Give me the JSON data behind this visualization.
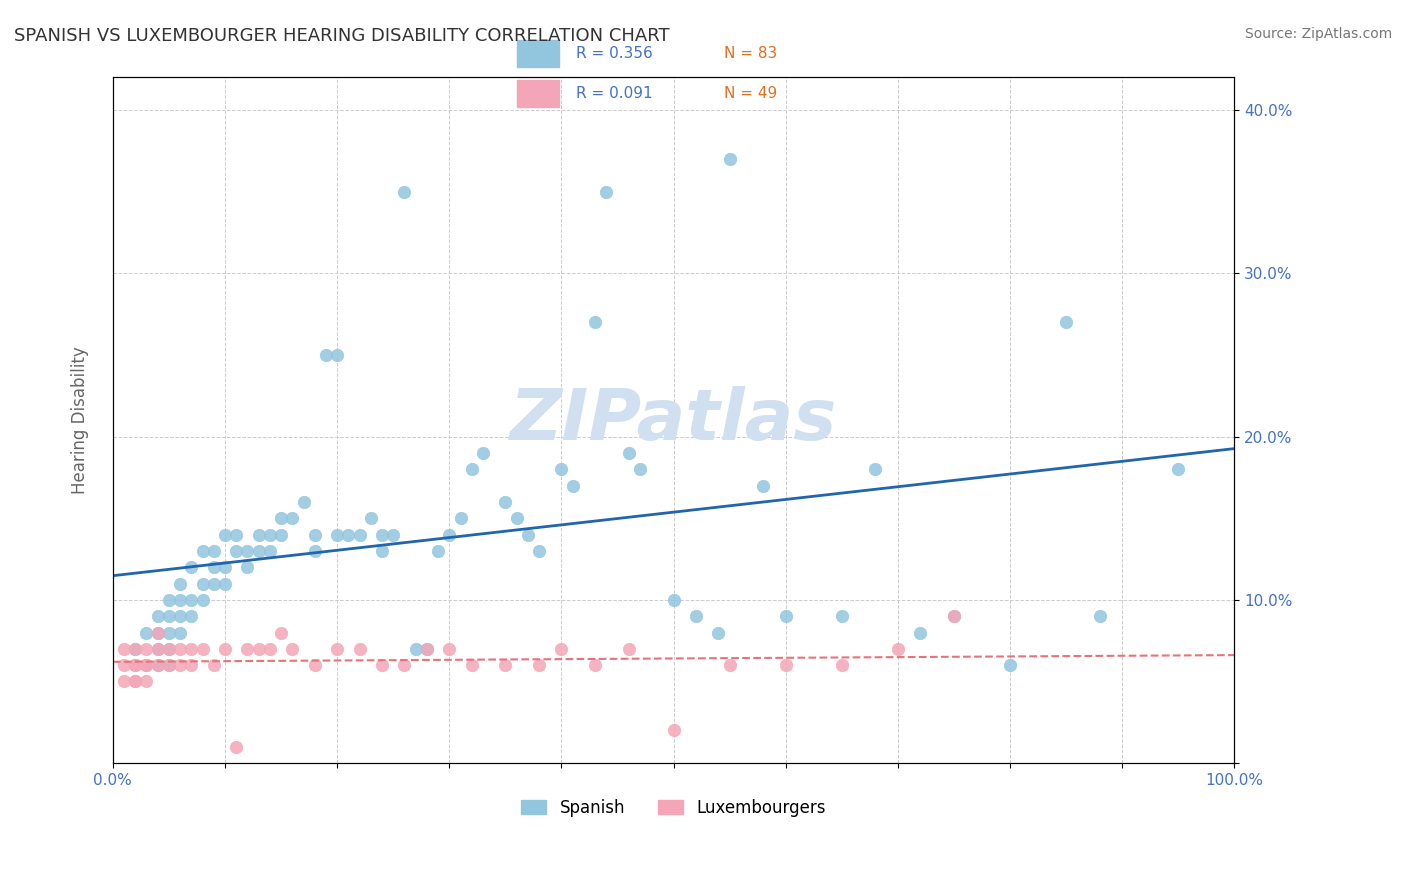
{
  "title": "SPANISH VS LUXEMBOURGER HEARING DISABILITY CORRELATION CHART",
  "source": "Source: ZipAtlas.com",
  "xlabel": "",
  "ylabel": "Hearing Disability",
  "watermark": "ZIPatlas",
  "legend_labels": [
    "Spanish",
    "Luxembourgers"
  ],
  "legend_r": [
    "R = 0.356",
    "R = 0.091"
  ],
  "legend_n": [
    "N = 83",
    "N = 49"
  ],
  "spanish_color": "#92C5DE",
  "luxembourger_color": "#F4A6B8",
  "spanish_line_color": "#2166AC",
  "luxembourger_line_color": "#E8727A",
  "xlim": [
    0,
    1.0
  ],
  "ylim": [
    0,
    0.42
  ],
  "xticks": [
    0.0,
    0.1,
    0.2,
    0.3,
    0.4,
    0.5,
    0.6,
    0.7,
    0.8,
    0.9,
    1.0
  ],
  "yticks": [
    0.0,
    0.1,
    0.2,
    0.3,
    0.4
  ],
  "ytick_labels": [
    "",
    "10.0%",
    "20.0%",
    "30.0%",
    "40.0%"
  ],
  "xtick_labels": [
    "0.0%",
    "",
    "",
    "",
    "",
    "",
    "",
    "",
    "",
    "",
    "100.0%"
  ],
  "spanish_x": [
    0.02,
    0.03,
    0.03,
    0.04,
    0.04,
    0.04,
    0.04,
    0.05,
    0.05,
    0.05,
    0.05,
    0.05,
    0.06,
    0.06,
    0.06,
    0.06,
    0.07,
    0.07,
    0.07,
    0.08,
    0.08,
    0.08,
    0.09,
    0.09,
    0.09,
    0.1,
    0.1,
    0.1,
    0.11,
    0.11,
    0.12,
    0.12,
    0.13,
    0.13,
    0.14,
    0.14,
    0.15,
    0.15,
    0.16,
    0.17,
    0.18,
    0.18,
    0.19,
    0.2,
    0.2,
    0.21,
    0.22,
    0.23,
    0.24,
    0.24,
    0.25,
    0.26,
    0.27,
    0.28,
    0.29,
    0.3,
    0.31,
    0.32,
    0.33,
    0.35,
    0.36,
    0.37,
    0.38,
    0.4,
    0.41,
    0.43,
    0.44,
    0.46,
    0.47,
    0.5,
    0.52,
    0.54,
    0.55,
    0.58,
    0.6,
    0.65,
    0.68,
    0.72,
    0.75,
    0.8,
    0.85,
    0.88,
    0.95
  ],
  "spanish_y": [
    0.07,
    0.08,
    0.06,
    0.09,
    0.07,
    0.06,
    0.08,
    0.1,
    0.09,
    0.07,
    0.08,
    0.06,
    0.09,
    0.11,
    0.1,
    0.08,
    0.12,
    0.1,
    0.09,
    0.13,
    0.11,
    0.1,
    0.13,
    0.12,
    0.11,
    0.14,
    0.12,
    0.11,
    0.14,
    0.13,
    0.13,
    0.12,
    0.14,
    0.13,
    0.14,
    0.13,
    0.15,
    0.14,
    0.15,
    0.16,
    0.14,
    0.13,
    0.25,
    0.25,
    0.14,
    0.14,
    0.14,
    0.15,
    0.14,
    0.13,
    0.14,
    0.35,
    0.07,
    0.07,
    0.13,
    0.14,
    0.15,
    0.18,
    0.19,
    0.16,
    0.15,
    0.14,
    0.13,
    0.18,
    0.17,
    0.27,
    0.35,
    0.19,
    0.18,
    0.1,
    0.09,
    0.08,
    0.37,
    0.17,
    0.09,
    0.09,
    0.18,
    0.08,
    0.09,
    0.06,
    0.27,
    0.09,
    0.18
  ],
  "luxembourger_x": [
    0.01,
    0.01,
    0.01,
    0.02,
    0.02,
    0.02,
    0.02,
    0.02,
    0.03,
    0.03,
    0.03,
    0.03,
    0.04,
    0.04,
    0.04,
    0.05,
    0.05,
    0.06,
    0.06,
    0.07,
    0.07,
    0.08,
    0.09,
    0.1,
    0.11,
    0.12,
    0.13,
    0.14,
    0.15,
    0.16,
    0.18,
    0.2,
    0.22,
    0.24,
    0.26,
    0.28,
    0.3,
    0.32,
    0.35,
    0.38,
    0.4,
    0.43,
    0.46,
    0.5,
    0.55,
    0.6,
    0.65,
    0.7,
    0.75
  ],
  "luxembourger_y": [
    0.05,
    0.06,
    0.07,
    0.06,
    0.05,
    0.07,
    0.06,
    0.05,
    0.07,
    0.06,
    0.05,
    0.06,
    0.07,
    0.06,
    0.08,
    0.06,
    0.07,
    0.07,
    0.06,
    0.07,
    0.06,
    0.07,
    0.06,
    0.07,
    0.01,
    0.07,
    0.07,
    0.07,
    0.08,
    0.07,
    0.06,
    0.07,
    0.07,
    0.06,
    0.06,
    0.07,
    0.07,
    0.06,
    0.06,
    0.06,
    0.07,
    0.06,
    0.07,
    0.02,
    0.06,
    0.06,
    0.06,
    0.07,
    0.09
  ],
  "background_color": "#ffffff",
  "grid_color": "#cccccc",
  "title_color": "#333333",
  "tick_color": "#4472C4",
  "watermark_color": "#D0E0F0"
}
